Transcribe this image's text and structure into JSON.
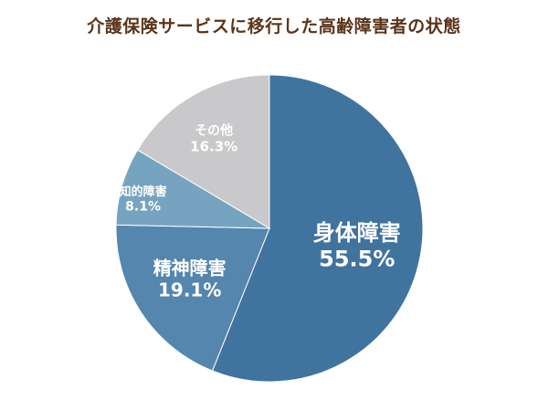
{
  "chart_data": {
    "type": "pie",
    "title": "介護保険サービスに移行した高齢障害者の状態",
    "slices": [
      {
        "name": "身体障害",
        "value": 55.5,
        "label": "55.5%",
        "color": "#41739f"
      },
      {
        "name": "精神障害",
        "value": 19.1,
        "label": "19.1%",
        "color": "#5486ae"
      },
      {
        "name": "知的障害",
        "value": 8.1,
        "label": "8.1%",
        "color": "#76a3bf"
      },
      {
        "name": "その他",
        "value": 16.3,
        "label": "16.3%",
        "color": "#c9c9cb"
      }
    ],
    "start_angle": "12 o'clock",
    "direction": "clockwise"
  },
  "colors": {
    "title": "#5a3418",
    "label_on_dark": "#ffffff"
  }
}
